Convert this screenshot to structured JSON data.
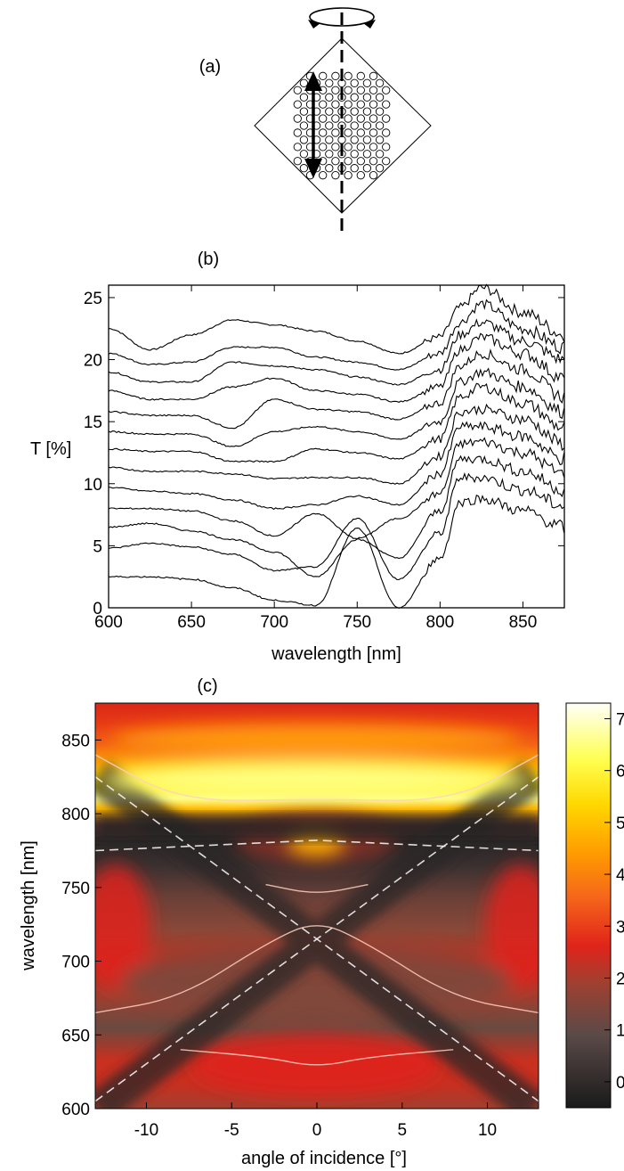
{
  "panels": {
    "a": {
      "label": "(a)"
    },
    "b": {
      "label": "(b)"
    },
    "c": {
      "label": "(c)"
    }
  },
  "chart_data": [
    {
      "type": "line",
      "panel": "(b)",
      "xlabel": "wavelength [nm]",
      "ylabel": "T [%]",
      "xlim": [
        600,
        875
      ],
      "ylim": [
        0,
        26
      ],
      "xticks": [
        600,
        650,
        700,
        750,
        800,
        850
      ],
      "yticks": [
        0,
        5,
        10,
        15,
        20,
        25
      ],
      "legend": "none",
      "grid": false,
      "x": [
        600,
        625,
        650,
        675,
        700,
        725,
        750,
        775,
        800,
        812,
        825,
        850,
        875
      ],
      "series": [
        {
          "values": [
            22.5,
            20.8,
            22.0,
            23.2,
            22.8,
            22.3,
            21.5,
            20.5,
            21.8,
            24.2,
            25.8,
            23.8,
            22.0
          ]
        },
        {
          "values": [
            20.5,
            19.6,
            19.8,
            21.0,
            21.0,
            20.2,
            19.8,
            19.2,
            20.5,
            23.0,
            24.5,
            22.5,
            21.0
          ]
        },
        {
          "values": [
            19.0,
            18.2,
            18.2,
            19.8,
            19.5,
            19.2,
            18.6,
            18.0,
            19.2,
            22.0,
            23.0,
            21.5,
            20.0
          ]
        },
        {
          "values": [
            17.5,
            16.8,
            16.8,
            17.8,
            18.5,
            17.5,
            17.2,
            16.6,
            17.8,
            20.8,
            21.8,
            20.5,
            18.5
          ]
        },
        {
          "values": [
            15.8,
            15.5,
            15.5,
            14.5,
            16.8,
            16.0,
            15.8,
            15.2,
            16.5,
            19.5,
            20.5,
            19.2,
            17.0
          ]
        },
        {
          "values": [
            14.2,
            14.0,
            14.0,
            13.0,
            14.2,
            14.6,
            14.2,
            13.6,
            15.0,
            18.2,
            19.0,
            17.8,
            15.8
          ]
        },
        {
          "values": [
            12.8,
            12.6,
            12.6,
            11.8,
            11.8,
            12.8,
            12.5,
            12.0,
            13.6,
            17.0,
            17.8,
            16.5,
            14.5
          ]
        },
        {
          "values": [
            11.3,
            11.0,
            11.0,
            10.8,
            10.4,
            10.5,
            10.5,
            10.0,
            12.2,
            15.8,
            16.0,
            15.2,
            13.2
          ]
        },
        {
          "values": [
            9.7,
            9.4,
            9.2,
            8.7,
            8.0,
            8.3,
            9.0,
            8.3,
            10.8,
            14.6,
            14.6,
            13.8,
            12.0
          ]
        },
        {
          "values": [
            8.0,
            8.0,
            7.8,
            7.0,
            5.8,
            7.6,
            5.6,
            7.2,
            9.2,
            13.2,
            13.4,
            12.5,
            10.8
          ]
        },
        {
          "values": [
            6.5,
            6.8,
            6.2,
            5.5,
            4.5,
            2.5,
            5.5,
            4.0,
            7.8,
            12.0,
            12.0,
            11.0,
            9.5
          ]
        },
        {
          "values": [
            4.8,
            5.2,
            4.9,
            4.3,
            3.0,
            3.3,
            7.2,
            2.3,
            6.0,
            10.5,
            10.5,
            9.5,
            8.2
          ]
        },
        {
          "values": [
            2.5,
            2.5,
            2.3,
            1.6,
            0.6,
            0.2,
            6.4,
            0.0,
            4.0,
            8.5,
            8.8,
            7.8,
            6.5
          ]
        }
      ]
    },
    {
      "type": "heatmap",
      "panel": "(c)",
      "xlabel": "angle of incidence [°]",
      "ylabel": "wavelength [nm]",
      "xlim": [
        -13,
        13
      ],
      "ylim": [
        600,
        875
      ],
      "xticks": [
        -10,
        -5,
        0,
        5,
        10
      ],
      "yticks": [
        600,
        650,
        700,
        750,
        800,
        850
      ],
      "colorscale": {
        "ticks": [
          0,
          1,
          2,
          3,
          4,
          5,
          6,
          7
        ],
        "range": [
          -0.5,
          7.3
        ],
        "colors": [
          "#1a1a1a",
          "#7a4a3a",
          "#d8281c",
          "#f25a10",
          "#ffa000",
          "#ffff1c",
          "#fffff5"
        ]
      },
      "overlays": {
        "dashed_lines": [
          {
            "from": [
              -13,
              825
            ],
            "to": [
              13,
              605
            ]
          },
          {
            "from": [
              -13,
              605
            ],
            "to": [
              13,
              825
            ]
          },
          {
            "curve": "shallow arc",
            "points": [
              [
                -13,
                775
              ],
              [
                0,
                782
              ],
              [
                13,
                775
              ]
            ]
          }
        ],
        "solid_curves": [
          {
            "points": [
              [
                -13,
                840
              ],
              [
                -8,
                808
              ],
              [
                0,
                810
              ],
              [
                8,
                808
              ],
              [
                13,
                840
              ]
            ]
          },
          {
            "points": [
              [
                -13,
                665
              ],
              [
                -8,
                675
              ],
              [
                -3,
                712
              ],
              [
                0,
                728
              ],
              [
                3,
                712
              ],
              [
                8,
                675
              ],
              [
                13,
                665
              ]
            ]
          },
          {
            "points": [
              [
                -3,
                752
              ],
              [
                0,
                745
              ],
              [
                3,
                752
              ]
            ]
          },
          {
            "points": [
              [
                -8,
                640
              ],
              [
                -3,
                635
              ],
              [
                0,
                628
              ],
              [
                3,
                635
              ],
              [
                8,
                640
              ]
            ]
          }
        ]
      }
    }
  ]
}
